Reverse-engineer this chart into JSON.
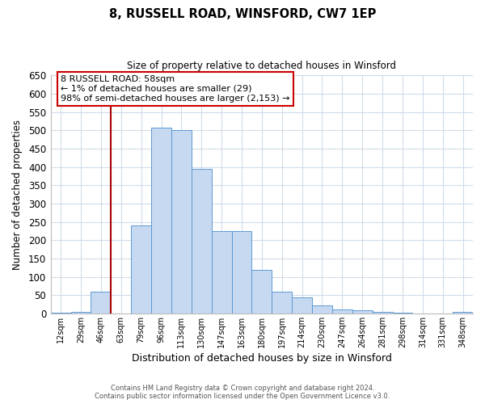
{
  "title": "8, RUSSELL ROAD, WINSFORD, CW7 1EP",
  "subtitle": "Size of property relative to detached houses in Winsford",
  "xlabel": "Distribution of detached houses by size in Winsford",
  "ylabel": "Number of detached properties",
  "bin_labels": [
    "12sqm",
    "29sqm",
    "46sqm",
    "63sqm",
    "79sqm",
    "96sqm",
    "113sqm",
    "130sqm",
    "147sqm",
    "163sqm",
    "180sqm",
    "197sqm",
    "214sqm",
    "230sqm",
    "247sqm",
    "264sqm",
    "281sqm",
    "298sqm",
    "314sqm",
    "331sqm",
    "348sqm"
  ],
  "bar_values": [
    2,
    5,
    60,
    0,
    240,
    507,
    500,
    395,
    225,
    225,
    120,
    60,
    45,
    22,
    10,
    8,
    5,
    2,
    0,
    0,
    5
  ],
  "bar_color": "#c6d9f0",
  "bar_edge_color": "#5b9bd5",
  "vline_x": 3.5,
  "vline_color": "#aa0000",
  "annotation_text": "8 RUSSELL ROAD: 58sqm\n← 1% of detached houses are smaller (29)\n98% of semi-detached houses are larger (2,153) →",
  "annotation_box_color": "#ffffff",
  "annotation_box_edge": "#cc0000",
  "ylim": [
    0,
    650
  ],
  "yticks": [
    0,
    50,
    100,
    150,
    200,
    250,
    300,
    350,
    400,
    450,
    500,
    550,
    600,
    650
  ],
  "footer_line1": "Contains HM Land Registry data © Crown copyright and database right 2024.",
  "footer_line2": "Contains public sector information licensed under the Open Government Licence v3.0.",
  "bg_color": "#ffffff",
  "grid_color": "#d0dcea"
}
